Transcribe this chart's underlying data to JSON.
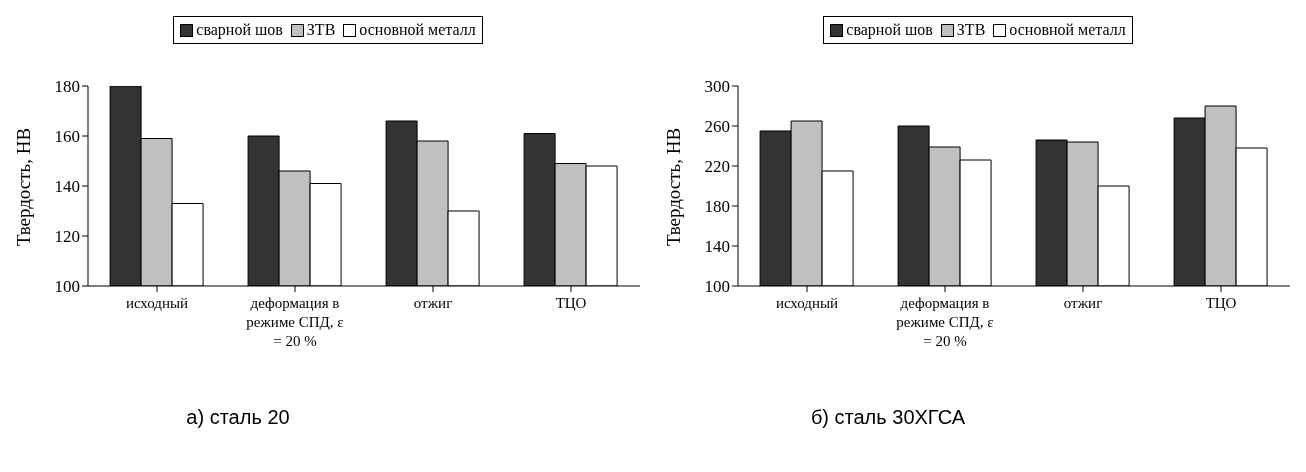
{
  "chart_data": [
    {
      "type": "bar",
      "categories": [
        "исходный",
        "деформация в режиме СПД, ε = 20 %",
        "отжиг",
        "ТЦО"
      ],
      "ylabel": "Твердость, НВ",
      "ylim": [
        100,
        180
      ],
      "yticks": [
        100,
        120,
        140,
        160,
        180
      ],
      "grid": false,
      "legend": "top",
      "annotations": [
        "а) сталь 20"
      ],
      "series": [
        {
          "name": "сварной шов",
          "color": "#333333",
          "values": [
            180,
            160,
            166,
            161
          ]
        },
        {
          "name": "ЗТВ",
          "color": "#c0c0c0",
          "values": [
            159,
            146,
            158,
            149
          ]
        },
        {
          "name": "основной металл",
          "color": "#ffffff",
          "values": [
            133,
            141,
            130,
            148
          ]
        }
      ]
    },
    {
      "type": "bar",
      "categories": [
        "исходный",
        "деформация в режиме СПД, ε = 20 %",
        "отжиг",
        "ТЦО"
      ],
      "ylabel": "Твердость, НВ",
      "ylim": [
        100,
        300
      ],
      "yticks": [
        100,
        140,
        180,
        220,
        260,
        300
      ],
      "grid": false,
      "legend": "top",
      "annotations": [
        "б) сталь 30ХГСА"
      ],
      "series": [
        {
          "name": "сварной шов",
          "color": "#333333",
          "values": [
            255,
            260,
            246,
            268
          ]
        },
        {
          "name": "ЗТВ",
          "color": "#c0c0c0",
          "values": [
            265,
            239,
            244,
            280
          ]
        },
        {
          "name": "основной металл",
          "color": "#ffffff",
          "values": [
            215,
            226,
            200,
            238
          ]
        }
      ]
    }
  ]
}
